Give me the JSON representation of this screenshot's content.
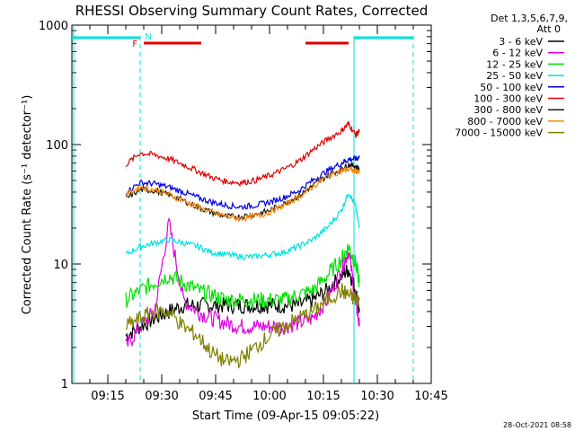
{
  "chart_data": {
    "type": "line",
    "title": "RHESSI Observing Summary Count Rates, Corrected",
    "xlabel": "Start Time (09-Apr-15 09:05:22)",
    "ylabel": "Corrected Count Rate (s⁻¹ detector⁻¹)",
    "y_scale": "log",
    "ylim": [
      1,
      1000
    ],
    "xlim_minutes": [
      5.37,
      45.37
    ],
    "x_ticks": [
      {
        "min": 15,
        "label": "09:15"
      },
      {
        "min": 30,
        "label": "09:30"
      },
      {
        "min": 45,
        "label": "09:45"
      },
      {
        "min": 60,
        "label": "10:00"
      },
      {
        "min": 75,
        "label": "10:15"
      },
      {
        "min": 90,
        "label": "10:30"
      },
      {
        "min": 105,
        "label": "10:45"
      }
    ],
    "y_ticks": [
      {
        "v": 1,
        "label": "1"
      },
      {
        "v": 10,
        "label": "10"
      },
      {
        "v": 100,
        "label": "100"
      },
      {
        "v": 1000,
        "label": "1000"
      }
    ],
    "legend_header": [
      "Det 1,3,5,6,7,9,",
      "Att 0"
    ],
    "legend_position": "right",
    "footer_date": "28-Oct-2021 08:58",
    "flag_labels": {
      "F": "F",
      "N": "N"
    },
    "x_minutes_relative": [
      20,
      24,
      28,
      32,
      36,
      40,
      44,
      48,
      52,
      56,
      60,
      64,
      68,
      72,
      76,
      80,
      82,
      84,
      85
    ],
    "series": [
      {
        "name": "3 - 6 keV",
        "color": "#000000",
        "values": [
          2.5,
          3,
          3.5,
          4,
          4.5,
          4.5,
          4.5,
          4.5,
          4.5,
          4.5,
          4.5,
          4.5,
          4.5,
          5,
          6,
          8,
          9,
          6,
          4
        ]
      },
      {
        "name": "6 - 12 keV",
        "color": "#e000e0",
        "values": [
          2,
          3,
          4,
          22,
          5,
          4,
          3.5,
          3.2,
          3,
          3,
          3,
          3,
          3.2,
          3.5,
          5,
          9,
          13,
          5,
          3
        ]
      },
      {
        "name": "12 - 25 keV",
        "color": "#00e000",
        "values": [
          5,
          6,
          7,
          8,
          7,
          6,
          5.5,
          5,
          5,
          5,
          5,
          5,
          5.5,
          6,
          8,
          11,
          14,
          10,
          7
        ]
      },
      {
        "name": "25 - 50 keV",
        "color": "#00e0e0",
        "values": [
          12,
          14,
          15,
          16,
          15,
          14,
          12.5,
          12,
          11.5,
          11.5,
          12,
          12.5,
          14,
          16,
          20,
          28,
          40,
          30,
          20
        ]
      },
      {
        "name": "50 - 100 keV",
        "color": "#0000e0",
        "values": [
          40,
          48,
          47,
          44,
          40,
          36,
          33,
          31,
          30,
          31,
          33,
          36,
          41,
          50,
          60,
          70,
          75,
          76,
          78
        ]
      },
      {
        "name": "100 - 300 keV",
        "color": "#e00000",
        "values": [
          68,
          85,
          82,
          76,
          68,
          60,
          53,
          49,
          48,
          50,
          55,
          62,
          72,
          90,
          110,
          130,
          150,
          120,
          130
        ]
      },
      {
        "name": "300 - 800 keV",
        "color": "#1a1a1a",
        "values": [
          35,
          42,
          41,
          38,
          34,
          30,
          27,
          25,
          25,
          26,
          28,
          32,
          37,
          45,
          55,
          62,
          68,
          66,
          62
        ]
      },
      {
        "name": "800 - 7000 keV",
        "color": "#ff8800",
        "values": [
          38,
          44,
          42,
          38,
          34,
          30,
          27,
          25,
          24,
          25,
          27,
          31,
          36,
          44,
          54,
          60,
          62,
          60,
          58
        ]
      },
      {
        "name": "7000 - 15000 keV",
        "color": "#808000",
        "values": [
          3,
          3.5,
          4,
          4,
          3,
          2.5,
          1.8,
          1.5,
          1.6,
          2,
          2.5,
          3,
          3.5,
          4,
          5,
          6,
          5.5,
          5,
          5
        ]
      }
    ]
  }
}
